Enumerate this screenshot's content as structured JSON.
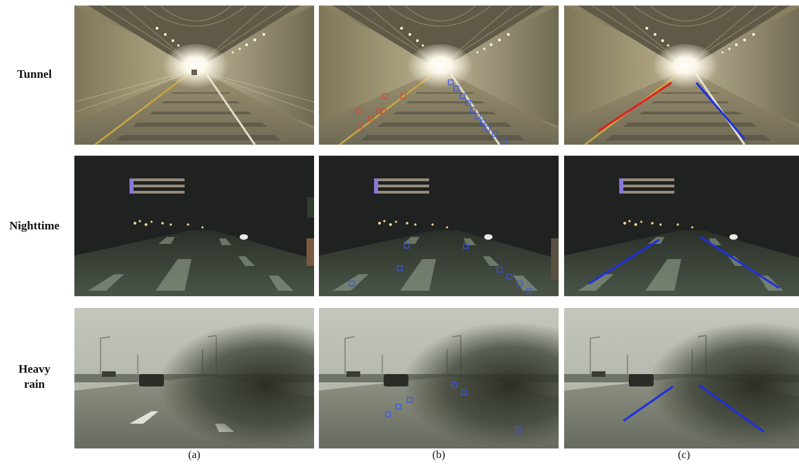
{
  "rows": [
    {
      "label_lines": [
        "Tunnel"
      ]
    },
    {
      "label_lines": [
        "Nighttime"
      ]
    },
    {
      "label_lines": [
        "Heavy",
        "rain"
      ]
    }
  ],
  "columns": [
    {
      "label": "(a)"
    },
    {
      "label": "(b)"
    },
    {
      "label": "(c)"
    }
  ],
  "colors": {
    "left_lane_tunnel": "#e02020",
    "lane_blue": "#1f2fe0",
    "marker_red": "#d04a3a",
    "marker_blue": "#3a56e8"
  }
}
